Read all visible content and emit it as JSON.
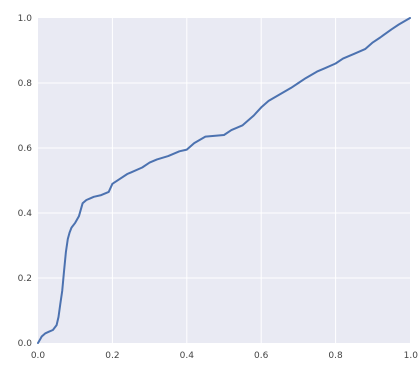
{
  "chart_data": {
    "type": "line",
    "title": "",
    "xlabel": "",
    "ylabel": "",
    "xlim": [
      0.0,
      1.0
    ],
    "ylim": [
      0.0,
      1.0
    ],
    "grid": true,
    "xticks": [
      0.0,
      0.2,
      0.4,
      0.6,
      0.8,
      1.0
    ],
    "yticks": [
      0.0,
      0.2,
      0.4,
      0.6,
      0.8,
      1.0
    ],
    "xtick_labels": [
      "0.0",
      "0.2",
      "0.4",
      "0.6",
      "0.8",
      "1.0"
    ],
    "ytick_labels": [
      "0.0",
      "0.2",
      "0.4",
      "0.6",
      "0.8",
      "1.0"
    ],
    "colors": {
      "background": "#e9eaf3",
      "grid": "#ffffff",
      "line": "#4c72b0"
    },
    "series": [
      {
        "x": [
          0.0,
          0.005,
          0.01,
          0.02,
          0.03,
          0.04,
          0.05,
          0.055,
          0.06,
          0.065,
          0.07,
          0.075,
          0.08,
          0.085,
          0.09,
          0.1,
          0.11,
          0.12,
          0.13,
          0.14,
          0.15,
          0.17,
          0.19,
          0.2,
          0.22,
          0.24,
          0.25,
          0.28,
          0.3,
          0.32,
          0.35,
          0.38,
          0.4,
          0.42,
          0.45,
          0.5,
          0.52,
          0.55,
          0.58,
          0.6,
          0.62,
          0.65,
          0.68,
          0.7,
          0.72,
          0.75,
          0.77,
          0.8,
          0.82,
          0.85,
          0.88,
          0.9,
          0.92,
          0.95,
          0.97,
          1.0
        ],
        "y": [
          0.0,
          0.01,
          0.02,
          0.03,
          0.035,
          0.04,
          0.055,
          0.08,
          0.12,
          0.16,
          0.22,
          0.28,
          0.32,
          0.34,
          0.355,
          0.37,
          0.39,
          0.43,
          0.44,
          0.445,
          0.45,
          0.455,
          0.465,
          0.49,
          0.505,
          0.52,
          0.525,
          0.54,
          0.555,
          0.565,
          0.575,
          0.59,
          0.595,
          0.615,
          0.635,
          0.64,
          0.655,
          0.67,
          0.7,
          0.725,
          0.745,
          0.765,
          0.785,
          0.8,
          0.815,
          0.835,
          0.845,
          0.86,
          0.875,
          0.89,
          0.905,
          0.925,
          0.94,
          0.965,
          0.98,
          1.0
        ]
      }
    ]
  }
}
